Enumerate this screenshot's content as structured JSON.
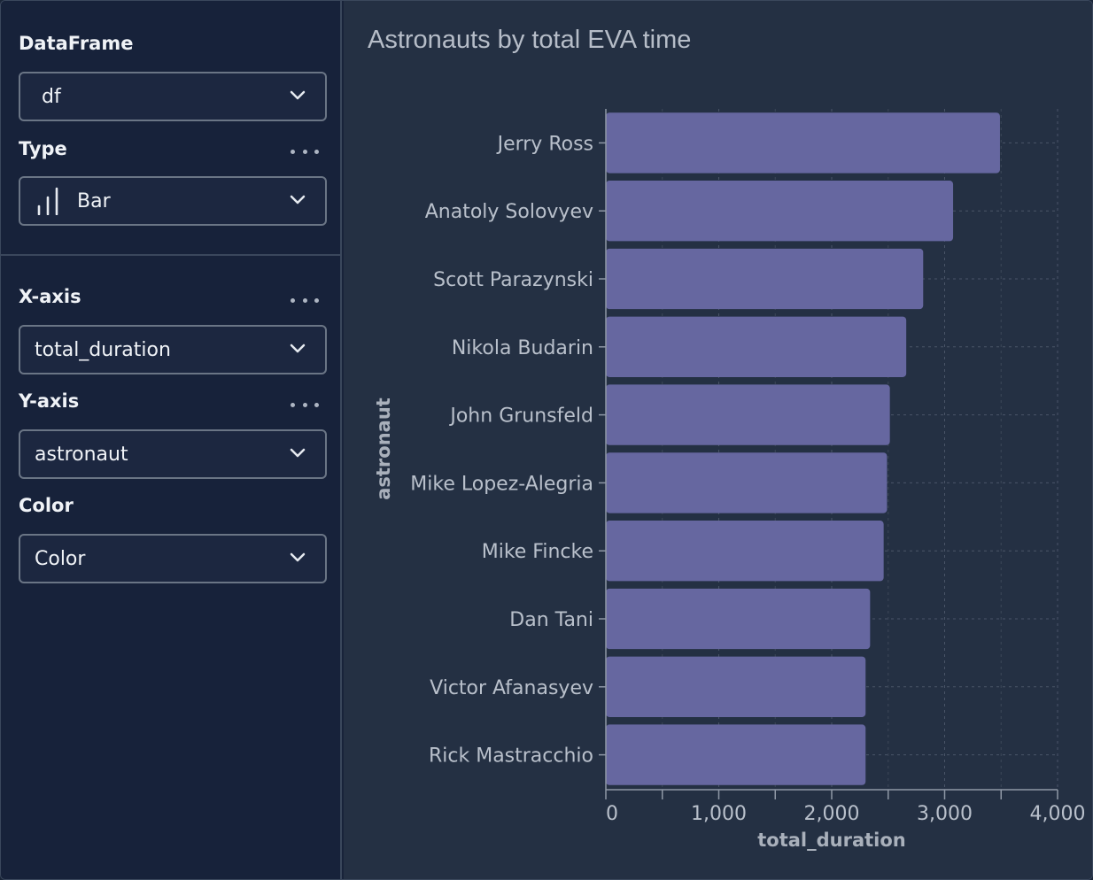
{
  "sidebar": {
    "dataframe": {
      "label": "DataFrame",
      "value": "df"
    },
    "type": {
      "label": "Type",
      "value": "Bar"
    },
    "x_axis": {
      "label": "X-axis",
      "value": "total_duration"
    },
    "y_axis": {
      "label": "Y-axis",
      "value": "astronaut"
    },
    "color": {
      "label": "Color",
      "value": "Color"
    }
  },
  "chart_data": {
    "type": "bar",
    "orientation": "horizontal",
    "title": "Astronauts by total EVA time",
    "xlabel": "total_duration",
    "ylabel": "astronaut",
    "categories": [
      "Jerry Ross",
      "Anatoly Solovyev",
      "Scott Parazynski",
      "Nikola Budarin",
      "John Grunsfeld",
      "Mike Lopez-Alegria",
      "Mike Fincke",
      "Dan Tani",
      "Victor Afanasyev",
      "Rick Mastracchio"
    ],
    "values": [
      3490,
      3075,
      2810,
      2660,
      2515,
      2490,
      2460,
      2340,
      2300,
      2300
    ],
    "xlim": [
      0,
      4000
    ],
    "xticks": [
      0,
      1000,
      2000,
      3000,
      4000
    ],
    "xtick_labels": [
      "0",
      "1,000",
      "2,000",
      "3,000",
      "4,000"
    ],
    "bar_color": "#6667a0",
    "grid": true
  }
}
